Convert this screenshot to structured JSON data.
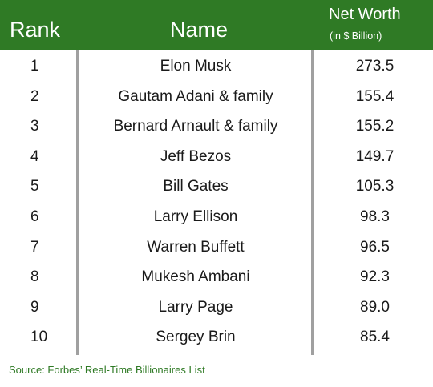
{
  "header": {
    "rank_label": "Rank",
    "name_label": "Name",
    "worth_label": "Net Worth",
    "worth_unit": "(in $ Billion)"
  },
  "rows": [
    {
      "rank": "1",
      "name": "Elon Musk",
      "worth": "273.5"
    },
    {
      "rank": "2",
      "name": "Gautam Adani & family",
      "worth": "155.4"
    },
    {
      "rank": "3",
      "name": "Bernard Arnault & family",
      "worth": "155.2"
    },
    {
      "rank": "4",
      "name": "Jeff Bezos",
      "worth": "149.7"
    },
    {
      "rank": "5",
      "name": "Bill Gates",
      "worth": "105.3"
    },
    {
      "rank": "6",
      "name": "Larry Ellison",
      "worth": "98.3"
    },
    {
      "rank": "7",
      "name": "Warren Buffett",
      "worth": "96.5"
    },
    {
      "rank": "8",
      "name": "Mukesh Ambani",
      "worth": "92.3"
    },
    {
      "rank": "9",
      "name": "Larry Page",
      "worth": "89.0"
    },
    {
      "rank": "10",
      "name": "Sergey Brin",
      "worth": "85.4"
    }
  ],
  "source": "Source: Forbes’ Real-Time Billionaires List",
  "colors": {
    "header_bg": "#2f7a25",
    "header_text": "#ffffff",
    "divider": "#a0a0a0",
    "source_text": "#2f7a25"
  }
}
